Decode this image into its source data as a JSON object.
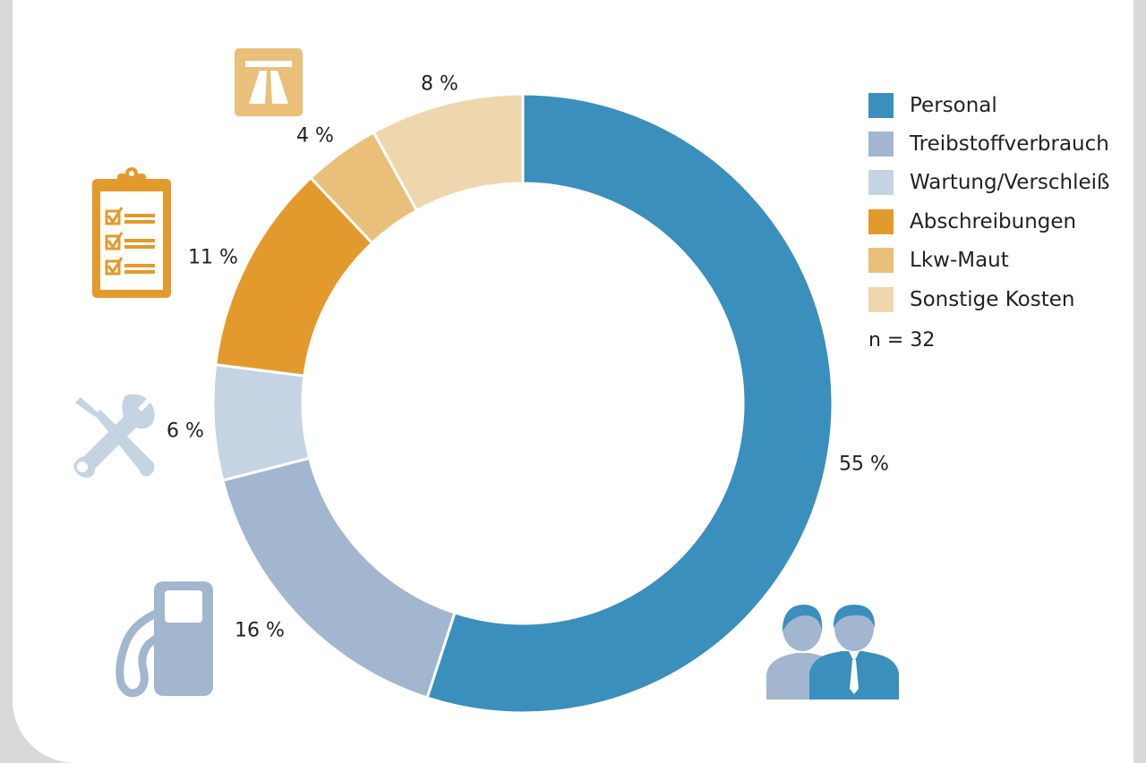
{
  "chart_data": {
    "type": "pie",
    "donut": true,
    "title": "",
    "categories": [
      "Personal",
      "Treibstoffverbrauch",
      "Wartung/Verschleiß",
      "Abschreibungen",
      "Lkw-Maut",
      "Sonstige Kosten"
    ],
    "values": [
      55,
      16,
      6,
      11,
      4,
      8
    ],
    "value_labels": [
      "55 %",
      "16 %",
      "6 %",
      "11 %",
      "4 %",
      "8 %"
    ],
    "colors": [
      "#3a8fbd",
      "#a3b6cf",
      "#c5d4e3",
      "#e39a2c",
      "#e9bf7a",
      "#efd7ad"
    ],
    "legend_position": "right",
    "note": "n = 32"
  },
  "icons": [
    "highway-icon",
    "clipboard-checklist-icon",
    "tools-icon",
    "fuel-pump-icon",
    "people-icon"
  ]
}
